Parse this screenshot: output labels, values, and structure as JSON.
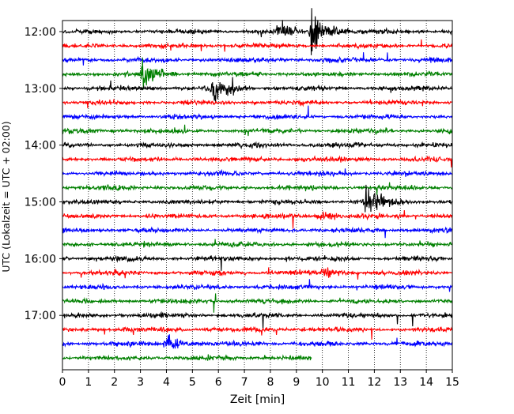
{
  "chart_data": {
    "type": "line",
    "subtype": "helicorder",
    "xlabel": "Zeit  [min]",
    "ylabel": "UTC (Lokalzeit = UTC + 02:00)",
    "xlim": [
      0,
      15
    ],
    "x_ticks": [
      0,
      1,
      2,
      3,
      4,
      5,
      6,
      7,
      8,
      9,
      10,
      11,
      12,
      13,
      14,
      15
    ],
    "grid": "vertical dotted lines at each minute",
    "trace_interval_minutes": 15,
    "row_labels": [
      "12:00",
      "13:00",
      "14:00",
      "15:00",
      "16:00",
      "17:00"
    ],
    "row_label_every": 4,
    "row_count": 24,
    "last_row_end_minute": 9.6,
    "colors": [
      "#000000",
      "#ff0000",
      "#0000ff",
      "#008000"
    ],
    "events": [
      {
        "row": 0,
        "minute": 9.6,
        "amplitude": "very large"
      },
      {
        "row": 0,
        "minute": 8.3,
        "amplitude": "medium"
      },
      {
        "row": 3,
        "minute": 3.1,
        "amplitude": "large"
      },
      {
        "row": 4,
        "minute": 5.8,
        "amplitude": "large"
      },
      {
        "row": 12,
        "minute": 11.7,
        "amplitude": "large"
      },
      {
        "row": 13,
        "minute": 9.9,
        "amplitude": "small"
      },
      {
        "row": 17,
        "minute": 10.0,
        "amplitude": "small"
      },
      {
        "row": 22,
        "minute": 4.0,
        "amplitude": "medium"
      }
    ]
  }
}
